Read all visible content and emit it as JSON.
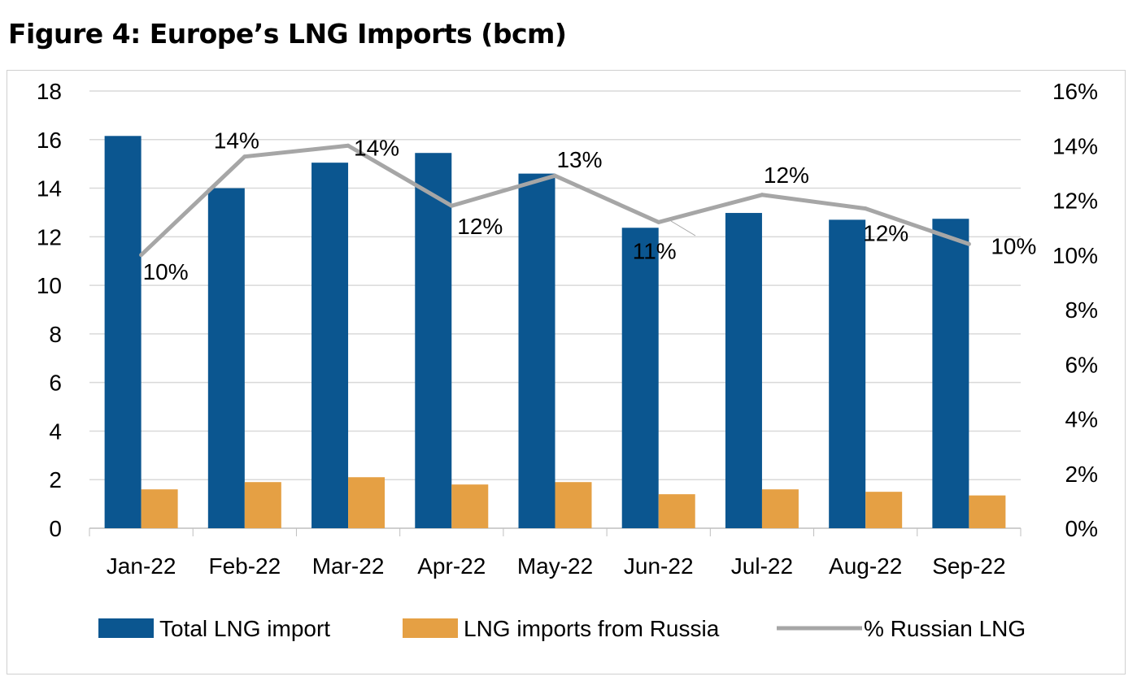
{
  "title": "Figure 4: Europe’s LNG Imports (bcm)",
  "colors": {
    "total": "#0b5690",
    "russia": "#e5a044",
    "pct": "#a6a6a6",
    "grid": "#d9d9d9"
  },
  "chart_data": {
    "type": "bar",
    "title": "Figure 4: Europe’s LNG Imports (bcm)",
    "categories": [
      "Jan-22",
      "Feb-22",
      "Mar-22",
      "Apr-22",
      "May-22",
      "Jun-22",
      "Jul-22",
      "Aug-22",
      "Sep-22"
    ],
    "series": [
      {
        "name": "Total LNG import",
        "type": "bar",
        "axis": "left",
        "values": [
          16.15,
          14.0,
          15.05,
          15.45,
          14.6,
          12.37,
          12.98,
          12.7,
          12.74
        ]
      },
      {
        "name": "LNG imports from Russia",
        "type": "bar",
        "axis": "left",
        "values": [
          1.6,
          1.9,
          2.1,
          1.8,
          1.9,
          1.4,
          1.6,
          1.5,
          1.35
        ]
      },
      {
        "name": "% Russian LNG",
        "type": "line",
        "axis": "right",
        "values": [
          10.0,
          13.6,
          14.0,
          11.8,
          12.9,
          11.2,
          12.2,
          11.7,
          10.4
        ],
        "labels": [
          "10%",
          "14%",
          "14%",
          "12%",
          "13%",
          "11%",
          "12%",
          "12%",
          "10%"
        ]
      }
    ],
    "ylim": [
      0,
      18
    ],
    "yticks": [
      "0",
      "2",
      "4",
      "6",
      "8",
      "10",
      "12",
      "14",
      "16",
      "18"
    ],
    "y2lim": [
      0,
      16
    ],
    "y2ticks": [
      "0%",
      "2%",
      "4%",
      "6%",
      "8%",
      "10%",
      "12%",
      "14%",
      "16%"
    ],
    "grid": true,
    "legend": "bottom"
  }
}
